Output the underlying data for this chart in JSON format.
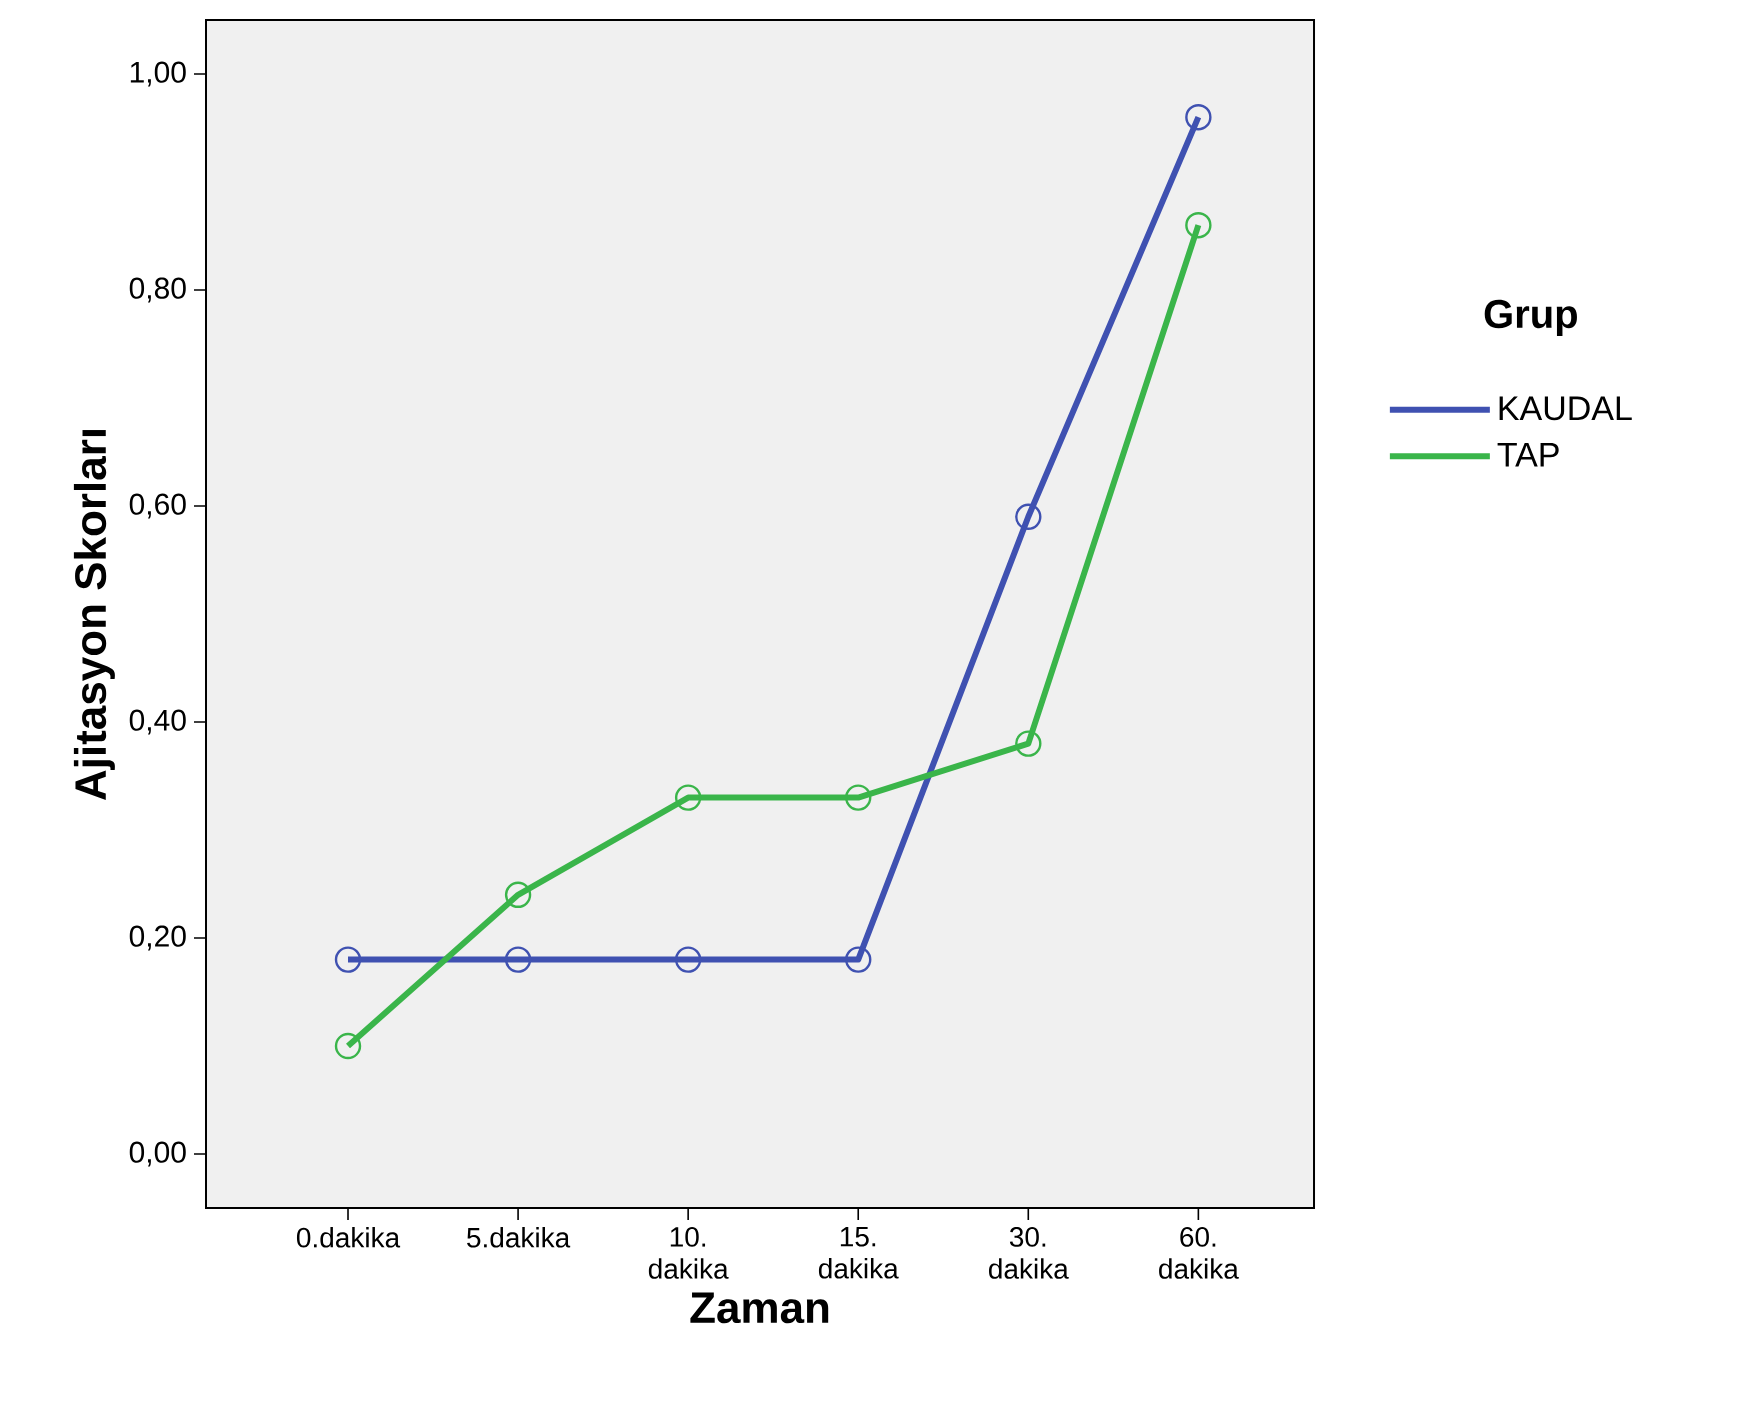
{
  "chart_data": {
    "type": "line",
    "xlabel": "Zaman",
    "ylabel": "Ajitasyon Skorları",
    "legend_title": "Grup",
    "categories": [
      "0.dakika",
      "5.dakika",
      "10. dakika",
      "15. dakika",
      "30. dakika",
      "60. dakika"
    ],
    "series": [
      {
        "name": "KAUDAL",
        "color": "#3f51b1",
        "values": [
          0.18,
          0.18,
          0.18,
          0.18,
          0.59,
          0.96
        ]
      },
      {
        "name": "TAP",
        "color": "#3ab54a",
        "values": [
          0.1,
          0.24,
          0.33,
          0.33,
          0.38,
          0.86
        ]
      }
    ],
    "ylim": [
      -0.05,
      1.05
    ],
    "yticks": [
      {
        "value": 0,
        "label": "0,00"
      },
      {
        "value": 0.2,
        "label": "0,20"
      },
      {
        "value": 0.4,
        "label": "0,40"
      },
      {
        "value": 0.6,
        "label": "0,60"
      },
      {
        "value": 0.8,
        "label": "0,80"
      },
      {
        "value": 1,
        "label": "1,00"
      }
    ],
    "legend": "right",
    "marker": "circle",
    "line_style": "solid",
    "grid": false
  }
}
